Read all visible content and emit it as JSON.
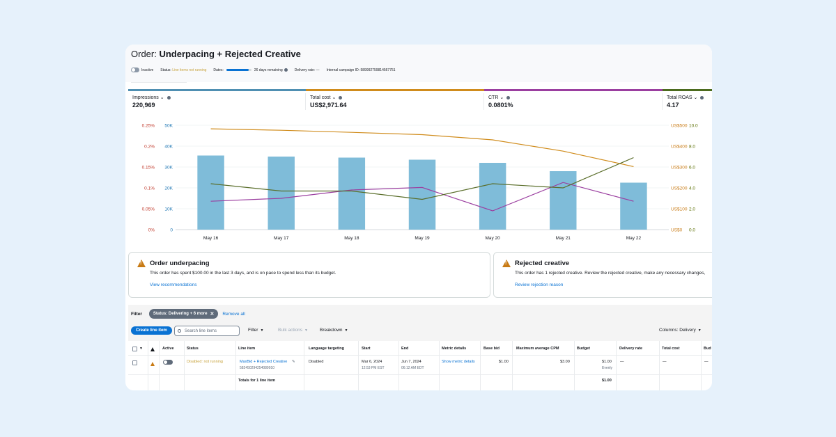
{
  "order": {
    "title_prefix": "Order:",
    "title": "Underpacing + Rejected Creative",
    "status_toggle": "Inactive",
    "status_label": "Status:",
    "status_value": "Line items not running",
    "dates_label": "Dates:",
    "dates_progress": 0.9,
    "days_remaining": "26 days remaining",
    "delivery_rate": "Delivery rate: —",
    "internal_id": "Internal campaign ID: 589992759814567751"
  },
  "metrics": [
    {
      "label": "Impressions",
      "value": "220,969",
      "color": "#4f8fb2"
    },
    {
      "label": "Total cost",
      "value": "US$2,971.64",
      "color": "#d08c1c"
    },
    {
      "label": "CTR",
      "value": "0.0801%",
      "color": "#9b3fa0"
    },
    {
      "label": "Total ROAS",
      "value": "4.17",
      "color": "#4c6b1e"
    }
  ],
  "chart_data": {
    "type": "bar",
    "categories": [
      "May 16",
      "May 17",
      "May 18",
      "May 19",
      "May 20",
      "May 21",
      "May 22"
    ],
    "axes": {
      "ctr": {
        "ticks": [
          "0%",
          "0.05%",
          "0.1%",
          "0.15%",
          "0.2%",
          "0.25%"
        ],
        "range": [
          0,
          0.25
        ],
        "color": "#c0392b"
      },
      "impressions": {
        "ticks": [
          "0",
          "10K",
          "20K",
          "30K",
          "40K",
          "50K"
        ],
        "range": [
          0,
          50000
        ],
        "color": "#1f77b4"
      },
      "cost": {
        "ticks": [
          "US$0",
          "US$100",
          "US$200",
          "US$300",
          "US$400",
          "US$500"
        ],
        "range": [
          0,
          500
        ],
        "color": "#c87a14"
      },
      "roas": {
        "ticks": [
          "0.0",
          "2.0",
          "4.0",
          "6.0",
          "8.0",
          "10.0"
        ],
        "range": [
          0,
          10
        ],
        "color": "#5a6e00"
      }
    },
    "series": [
      {
        "key": "impressions",
        "type": "bar",
        "color": "#7fbcd9",
        "values": [
          35500,
          35000,
          34500,
          33500,
          32000,
          28000,
          22500
        ]
      },
      {
        "key": "cost",
        "type": "line",
        "color": "#d08c1c",
        "values": [
          483,
          476,
          466,
          455,
          430,
          376,
          302
        ]
      },
      {
        "key": "ctr",
        "type": "line",
        "color": "#9b3fa0",
        "values": [
          0.068,
          0.075,
          0.095,
          0.101,
          0.045,
          0.113,
          0.068
        ]
      },
      {
        "key": "roas",
        "type": "line",
        "color": "#5a6e2a",
        "values": [
          4.4,
          3.7,
          3.7,
          2.9,
          4.4,
          4.0,
          6.9
        ]
      }
    ],
    "grid": true
  },
  "alerts": [
    {
      "title": "Order underpacing",
      "body": "This order has spent $100.00 in the last 3 days, and is on pace to spend less than its budget.",
      "link": "View recommendations"
    },
    {
      "title": "Rejected creative",
      "body": "This order has 1 rejected creative. Review the rejected creative, make any necessary changes,",
      "link": "Review rejection reason"
    }
  ],
  "filter": {
    "label": "Filter",
    "chip": "Status: Delivering + 6 more",
    "remove_all": "Remove all"
  },
  "toolbar": {
    "create": "Create line item",
    "search_placeholder": "Search line items",
    "filter": "Filter",
    "bulk": "Bulk actions",
    "breakdown": "Breakdown",
    "columns": "Columns: Delivery"
  },
  "table": {
    "headers": {
      "active": "Active",
      "status": "Status",
      "line_item": "Line item",
      "language": "Language targeting",
      "start": "Start",
      "end": "End",
      "metric": "Metric details",
      "base_bid": "Base bid",
      "max_cpm": "Maximum average CPM",
      "budget": "Budget",
      "delivery_rate": "Delivery rate",
      "total_cost": "Total cost",
      "bud": "Bud"
    },
    "row": {
      "status": "Disabled: not running",
      "line_item": "MaxBid + Rejected Creative",
      "line_item_id": "582450294254089910",
      "language": "Disabled",
      "start_date": "Mar 6, 2024",
      "start_time": "12:53 PM EST",
      "end_date": "Jun 7, 2024",
      "end_time": "06:12 AM EDT",
      "metric": "Show metric details",
      "base_bid": "$1.00",
      "max_cpm": "$3.00",
      "budget": "$1.00",
      "budget_sub": "Evenly",
      "delivery_rate": "—",
      "total_cost": "—",
      "bud": "—"
    },
    "totals_label": "Totals for 1 line item",
    "totals_budget": "$1.00"
  }
}
